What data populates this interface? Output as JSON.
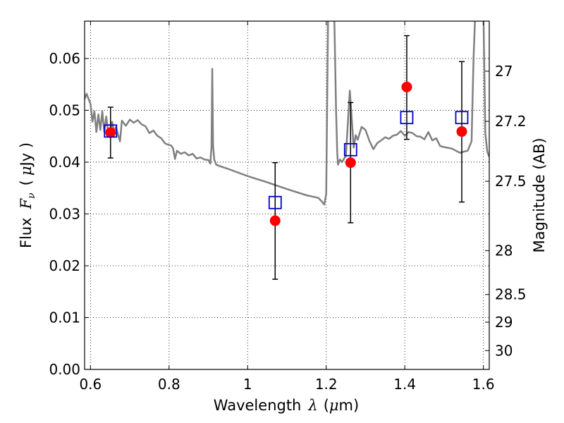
{
  "chart_data": {
    "type": "scatter",
    "title": "",
    "xlabel": {
      "text": "Wavelength",
      "symbol": "λ",
      "unit_pre": "(",
      "unit_mu": "μ",
      "unit_post": "m)"
    },
    "ylabel": {
      "text": "Flux",
      "symbol": "F",
      "subscript": "ν",
      "unit_pre": "(",
      "unit_mu": "μ",
      "unit_post": "Jy )"
    },
    "y2label": "Magnitude (AB)",
    "xlim": [
      0.585,
      1.615
    ],
    "ylim": [
      0.0,
      0.0672
    ],
    "x_ticks": [
      0.6,
      0.8,
      1.0,
      1.2,
      1.4,
      1.6
    ],
    "x_tick_labels": [
      "0.6",
      "0.8",
      "1",
      "1.2",
      "1.4",
      "1.6"
    ],
    "y_ticks": [
      0.0,
      0.01,
      0.02,
      0.03,
      0.04,
      0.05,
      0.06
    ],
    "y_tick_labels": [
      "0.00",
      "0.01",
      "0.02",
      "0.03",
      "0.04",
      "0.05",
      "0.06"
    ],
    "mag_ticks": [
      27,
      27.2,
      27.5,
      28,
      28.5,
      29,
      30
    ],
    "mag_tick_labels": [
      "27",
      "27.2",
      "27.5",
      "28",
      "28.5",
      "29",
      "30"
    ],
    "grid": true,
    "colors": {
      "model": "#808080",
      "observed": "#ff0000",
      "synthetic": "#0000cc",
      "errorbar": "#000000"
    },
    "series": [
      {
        "kind": "line",
        "x": [
          0.585,
          0.59,
          0.6,
          0.605,
          0.61,
          0.615,
          0.62,
          0.625,
          0.63,
          0.635,
          0.64,
          0.645,
          0.65,
          0.655,
          0.66,
          0.665,
          0.67,
          0.675,
          0.68,
          0.69,
          0.7,
          0.71,
          0.72,
          0.73,
          0.74,
          0.75,
          0.76,
          0.77,
          0.78,
          0.79,
          0.8,
          0.805,
          0.81,
          0.815,
          0.82,
          0.83,
          0.84,
          0.85,
          0.86,
          0.87,
          0.88,
          0.89,
          0.9,
          0.905,
          0.908,
          0.91,
          0.912,
          0.915,
          0.92,
          0.93,
          0.95,
          1.0,
          1.05,
          1.1,
          1.15,
          1.18,
          1.19,
          1.195,
          1.2,
          1.205,
          1.22,
          1.225,
          1.228,
          1.23,
          1.235,
          1.24,
          1.25,
          1.26,
          1.27,
          1.275,
          1.28,
          1.29,
          1.3,
          1.31,
          1.32,
          1.33,
          1.34,
          1.35,
          1.36,
          1.37,
          1.38,
          1.39,
          1.4,
          1.41,
          1.42,
          1.43,
          1.44,
          1.45,
          1.46,
          1.47,
          1.48,
          1.49,
          1.5,
          1.52,
          1.54,
          1.55,
          1.56,
          1.57,
          1.575,
          1.58,
          1.6,
          1.605,
          1.61,
          1.615
        ],
        "y": [
          0.0522,
          0.0532,
          0.0512,
          0.0478,
          0.0498,
          0.0458,
          0.0492,
          0.0462,
          0.0498,
          0.0458,
          0.0488,
          0.0458,
          0.0458,
          0.0478,
          0.0458,
          0.0468,
          0.0453,
          0.044,
          0.048,
          0.047,
          0.0482,
          0.0476,
          0.0481,
          0.0473,
          0.0469,
          0.0456,
          0.0461,
          0.0451,
          0.0446,
          0.0436,
          0.0433,
          0.0432,
          0.0427,
          0.0406,
          0.0422,
          0.0416,
          0.0419,
          0.0413,
          0.0416,
          0.0407,
          0.0409,
          0.0405,
          0.0404,
          0.0397,
          0.043,
          0.058,
          0.0432,
          0.0405,
          0.0395,
          0.0392,
          0.0387,
          0.0373,
          0.0361,
          0.0348,
          0.0336,
          0.0331,
          0.0323,
          0.0318,
          0.0338,
          0.07,
          0.07,
          0.05,
          0.042,
          0.0395,
          0.0405,
          0.04,
          0.0412,
          0.0538,
          0.0428,
          0.0452,
          0.0443,
          0.0468,
          0.0462,
          0.0441,
          0.0425,
          0.0437,
          0.0442,
          0.0448,
          0.0445,
          0.0451,
          0.0453,
          0.046,
          0.0451,
          0.0458,
          0.0456,
          0.045,
          0.0449,
          0.0444,
          0.0458,
          0.0442,
          0.0446,
          0.0431,
          0.0429,
          0.0426,
          0.0418,
          0.042,
          0.0422,
          0.044,
          0.06,
          0.07,
          0.07,
          0.0455,
          0.042,
          0.041
        ]
      },
      {
        "name": "",
        "kind": "error",
        "x": [
          0.651,
          1.07,
          1.262,
          1.405,
          1.545
        ],
        "y": [
          0.0457,
          0.0287,
          0.0399,
          0.0545,
          0.0459
        ],
        "yerr_low": [
          0.0049,
          0.0113,
          0.0116,
          0.0101,
          0.0136
        ],
        "yerr_high": [
          0.0049,
          0.0112,
          0.0116,
          0.0099,
          0.0135
        ]
      },
      {
        "name": "",
        "kind": "marker",
        "x": [
          0.651,
          1.07,
          1.262,
          1.405,
          1.545
        ],
        "y": [
          0.046,
          0.0322,
          0.0424,
          0.0486,
          0.0486
        ]
      }
    ]
  }
}
